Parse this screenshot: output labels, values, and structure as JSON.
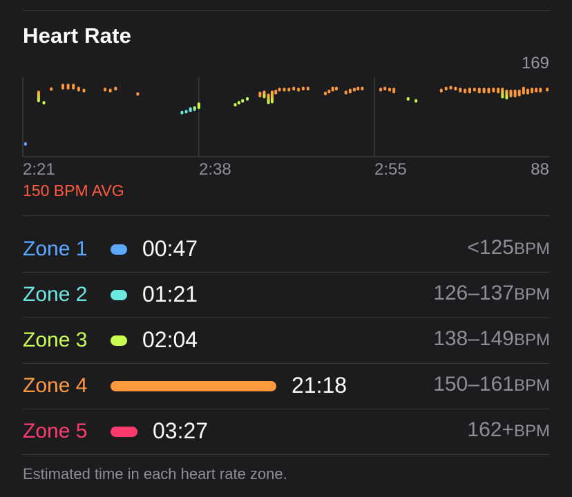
{
  "header": {
    "title": "Heart Rate"
  },
  "chart_data": {
    "type": "scatter",
    "title": "Heart Rate",
    "x_ticks": [
      "2:21",
      "2:38",
      "2:55"
    ],
    "y_max_label": "169",
    "y_min_label": "88",
    "ylim": [
      88,
      169
    ],
    "avg_label": "150 BPM AVG",
    "zone_colors": [
      "#5aa9ff",
      "#6be8e0",
      "#c8ff50",
      "#ff9a3c",
      "#ff3b6e"
    ],
    "readings": [
      [
        0.5,
        101,
        101
      ],
      [
        3,
        145,
        154
      ],
      [
        4,
        143,
        143
      ],
      [
        5.4,
        157,
        157
      ],
      [
        7.6,
        158,
        161
      ],
      [
        8.6,
        158,
        161
      ],
      [
        9.6,
        158,
        161
      ],
      [
        10.6,
        156,
        158
      ],
      [
        11.6,
        155,
        156
      ],
      [
        15.6,
        156,
        157
      ],
      [
        16.6,
        155,
        156
      ],
      [
        17.6,
        157,
        158
      ],
      [
        21.8,
        152,
        152
      ],
      [
        30.2,
        133,
        133
      ],
      [
        31,
        134,
        134
      ],
      [
        31.8,
        135,
        137
      ],
      [
        32.6,
        136,
        138
      ],
      [
        33.4,
        138,
        142
      ],
      [
        40.3,
        141,
        141
      ],
      [
        41,
        143,
        143
      ],
      [
        41.7,
        145,
        145
      ],
      [
        42.6,
        147,
        147
      ],
      [
        45,
        150,
        153
      ],
      [
        45.8,
        149,
        154
      ],
      [
        46.6,
        143,
        151
      ],
      [
        47.3,
        144,
        154
      ],
      [
        48,
        153,
        155
      ],
      [
        48.7,
        156,
        157
      ],
      [
        49.6,
        156,
        157
      ],
      [
        50.5,
        156,
        157
      ],
      [
        51.4,
        157,
        158
      ],
      [
        52.3,
        156,
        157
      ],
      [
        53.2,
        157,
        158
      ],
      [
        54.1,
        157,
        158
      ],
      [
        57.4,
        152,
        153
      ],
      [
        58.1,
        154,
        155
      ],
      [
        58.8,
        156,
        158
      ],
      [
        59.5,
        157,
        158
      ],
      [
        61.3,
        153,
        154
      ],
      [
        62.1,
        154,
        156
      ],
      [
        62.9,
        156,
        157
      ],
      [
        63.6,
        157,
        158
      ],
      [
        64.4,
        157,
        158
      ],
      [
        67.9,
        156,
        157
      ],
      [
        68.7,
        157,
        158
      ],
      [
        69.6,
        156,
        157
      ],
      [
        70.4,
        154,
        157
      ],
      [
        73.1,
        147,
        147
      ],
      [
        74.6,
        145,
        145
      ],
      [
        79.4,
        155,
        156
      ],
      [
        80.3,
        157,
        158
      ],
      [
        81.2,
        158,
        159
      ],
      [
        82.1,
        157,
        158
      ],
      [
        83,
        155,
        157
      ],
      [
        83.9,
        154,
        156
      ],
      [
        84.8,
        154,
        157
      ],
      [
        85.7,
        156,
        157
      ],
      [
        86.6,
        154,
        157
      ],
      [
        87.5,
        154,
        157
      ],
      [
        88.4,
        154,
        157
      ],
      [
        89.3,
        155,
        157
      ],
      [
        90.2,
        154,
        157
      ],
      [
        91,
        149,
        157
      ],
      [
        91.8,
        148,
        155
      ],
      [
        92.6,
        150,
        155
      ],
      [
        93.4,
        150,
        155
      ],
      [
        94.2,
        151,
        155
      ],
      [
        95,
        153,
        158
      ],
      [
        95.8,
        153,
        156
      ],
      [
        96.6,
        154,
        157
      ],
      [
        97.4,
        155,
        157
      ],
      [
        98.2,
        155,
        157
      ],
      [
        99.5,
        156,
        157
      ]
    ]
  },
  "zones": [
    {
      "name": "Zone 1",
      "time": "00:47",
      "range": "<125",
      "unit": "BPM",
      "color": "#5aa9ff",
      "minutes": 0.78
    },
    {
      "name": "Zone 2",
      "time": "01:21",
      "range": "126–137",
      "unit": "BPM",
      "color": "#6be8e0",
      "minutes": 1.35
    },
    {
      "name": "Zone 3",
      "time": "02:04",
      "range": "138–149",
      "unit": "BPM",
      "color": "#c8ff50",
      "minutes": 2.07
    },
    {
      "name": "Zone 4",
      "time": "21:18",
      "range": "150–161",
      "unit": "BPM",
      "color": "#ff9a3c",
      "minutes": 21.3
    },
    {
      "name": "Zone 5",
      "time": "03:27",
      "range": "162+",
      "unit": "BPM",
      "color": "#ff3b6e",
      "minutes": 3.45
    }
  ],
  "footnote": "Estimated time in each heart rate zone."
}
